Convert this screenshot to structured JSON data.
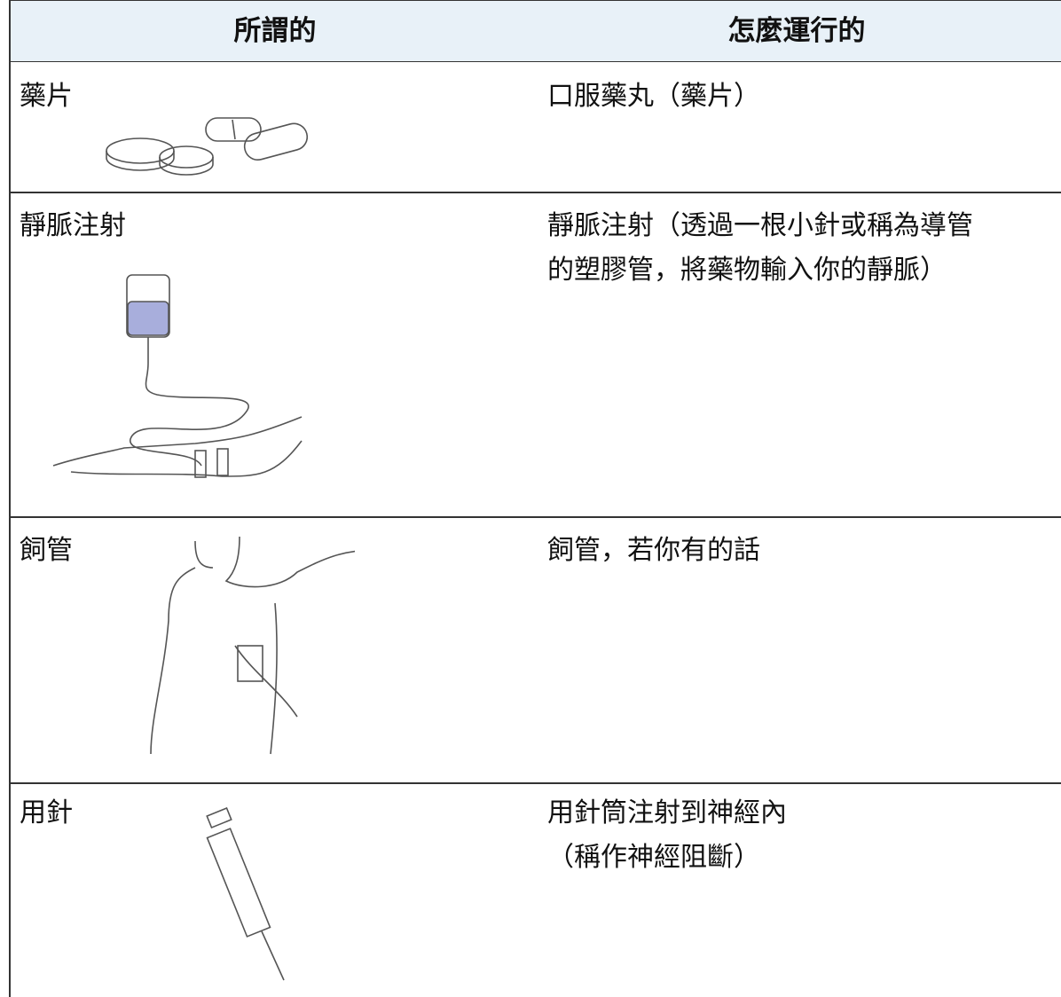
{
  "header": {
    "columns": [
      "所謂的",
      "怎麼運行的"
    ]
  },
  "table": {
    "rows": [
      {
        "name": "藥片",
        "description": [
          "口服藥丸（藥片）"
        ]
      },
      {
        "name": "靜脈注射",
        "description": [
          "靜脈注射（透過一根小針或稱為導管",
          "的塑膠管，將藥物輸入你的靜脈）"
        ]
      },
      {
        "name": "飼管",
        "description": [
          "飼管，若你有的話"
        ]
      },
      {
        "name": "用針",
        "description": [
          "用針筒注射到神經內",
          "（稱作神經阻斷）"
        ]
      }
    ]
  }
}
